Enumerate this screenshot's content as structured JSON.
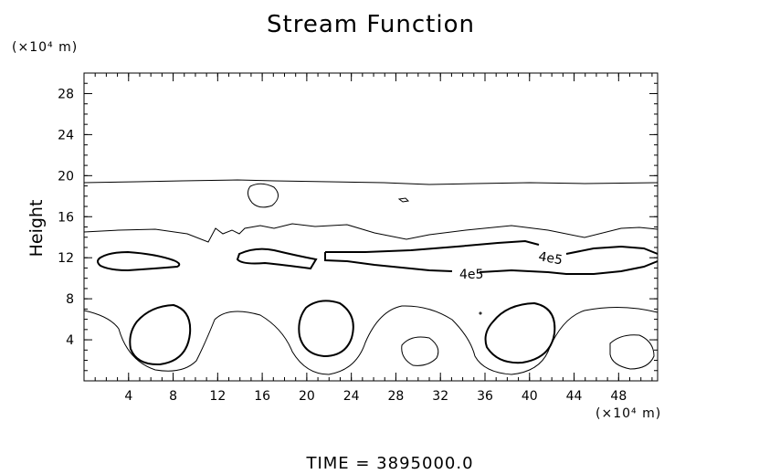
{
  "chart_data": {
    "type": "contour",
    "title": "Stream Function",
    "ylabel": "Height",
    "y_unit": "(×10⁴ m)",
    "x_unit": "(×10⁴ m)",
    "footer": "TIME  =  3895000.0",
    "x_ticks": [
      "4",
      "8",
      "12",
      "16",
      "20",
      "24",
      "28",
      "32",
      "36",
      "40",
      "44",
      "48"
    ],
    "y_ticks": [
      "4",
      "8",
      "12",
      "16",
      "20",
      "24",
      "28"
    ],
    "xlim": [
      0,
      51.5
    ],
    "ylim": [
      0,
      30
    ],
    "contour_labels": [
      "4e5",
      "4e5"
    ],
    "grid": false
  }
}
